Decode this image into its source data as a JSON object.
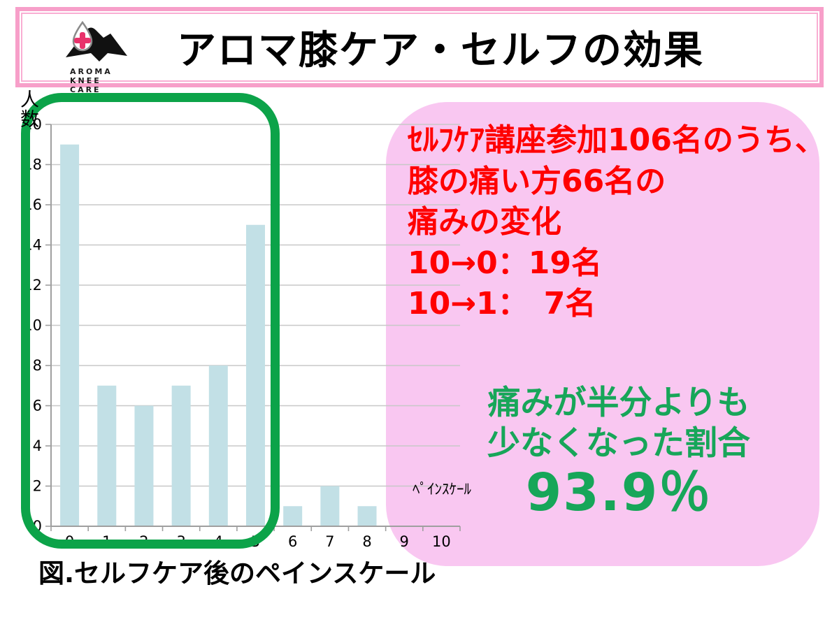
{
  "header": {
    "title": "アロマ膝ケア・セルフの効果",
    "logo_lines": [
      "AROMA",
      "KNEE",
      "CARE"
    ]
  },
  "chart_data": {
    "type": "bar",
    "title": "図.セルフケア後のペインスケール",
    "categories": [
      "0",
      "1",
      "2",
      "3",
      "4",
      "5",
      "6",
      "7",
      "8",
      "9",
      "10"
    ],
    "values": [
      19,
      7,
      6,
      7,
      8,
      15,
      1,
      2,
      1,
      0,
      0
    ],
    "xlabel": "ﾍﾟｲﾝｽｹｰﾙ",
    "ylabel": "人数",
    "ylim": [
      0,
      20
    ],
    "ytick_step": 2,
    "grid": true,
    "legend": "none",
    "bar_color": "#c2e0e6",
    "grid_color": "#c8c8c8",
    "axis_color": "#9f9f9f",
    "highlighted_categories": "0-5"
  },
  "annotation": {
    "red_lines": [
      "ｾﾙﾌｹｱ講座参加106名のうち、",
      "膝の痛い方66名の",
      "痛みの変化",
      "10→0：19名",
      "10→1：　7名"
    ],
    "green_line1": "痛みが半分よりも",
    "green_line2": "少なくなった割合",
    "green_value": "93.9％",
    "red_color": "#ff0000",
    "green_color": "#17a659",
    "bubble_color": "#f9c7f1",
    "outline_color": "#0ca349"
  },
  "caption": "図.セルフケア後のペインスケール"
}
